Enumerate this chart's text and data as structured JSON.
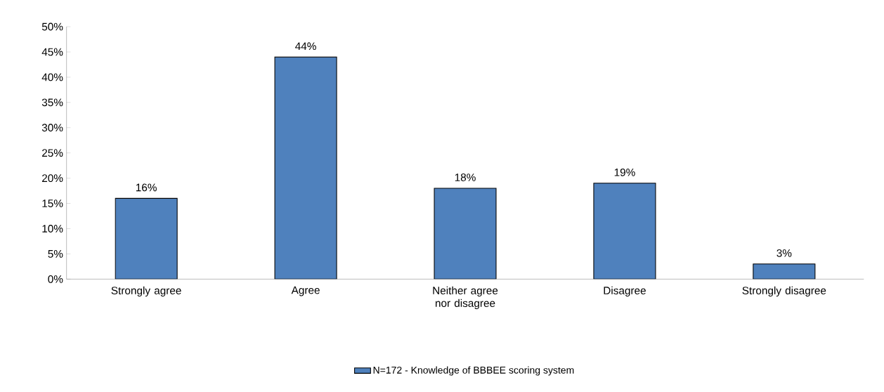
{
  "chart_data": {
    "type": "bar",
    "categories": [
      "Strongly agree",
      "Agree",
      "Neither agree nor disagree",
      "Disagree",
      "Strongly disagree"
    ],
    "series": [
      {
        "name": "N=172 - Knowledge of BBBEE scoring system",
        "color": "#4f81bd",
        "values": [
          16,
          44,
          18,
          19,
          3
        ],
        "value_labels": [
          "16%",
          "44%",
          "18%",
          "19%",
          "3%"
        ]
      }
    ],
    "ylim": [
      0,
      50
    ],
    "yticks": [
      {
        "value": 0,
        "label": "0%"
      },
      {
        "value": 5,
        "label": "5%"
      },
      {
        "value": 10,
        "label": "10%"
      },
      {
        "value": 15,
        "label": "15%"
      },
      {
        "value": 20,
        "label": "20%"
      },
      {
        "value": 25,
        "label": "25%"
      },
      {
        "value": 30,
        "label": "30%"
      },
      {
        "value": 35,
        "label": "35%"
      },
      {
        "value": 40,
        "label": "40%"
      },
      {
        "value": 45,
        "label": "45%"
      },
      {
        "value": 50,
        "label": "50%"
      }
    ],
    "grid": false,
    "legend": "bottom"
  }
}
